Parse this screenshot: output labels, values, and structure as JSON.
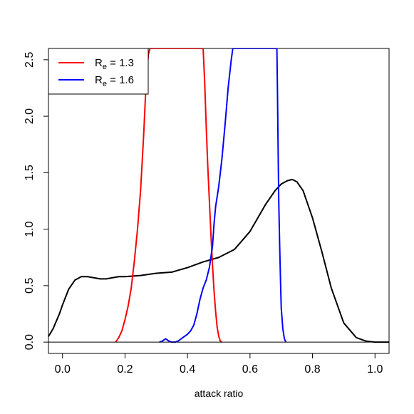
{
  "chart_data": {
    "type": "line",
    "xlabel": "attack ratio",
    "ylabel": "",
    "xlim": [
      -0.045,
      1.045
    ],
    "ylim": [
      -0.1,
      2.6
    ],
    "xticks": [
      0.0,
      0.2,
      0.4,
      0.6,
      0.8,
      1.0
    ],
    "xtick_labels": [
      "0.0",
      "0.2",
      "0.4",
      "0.6",
      "0.8",
      "1.0"
    ],
    "yticks": [
      0.0,
      0.5,
      1.0,
      1.5,
      2.0,
      2.5
    ],
    "ytick_labels": [
      "0.0",
      "0.5",
      "1.0",
      "1.5",
      "2.0",
      "2.5"
    ],
    "hline": 0,
    "grid": false,
    "legend": {
      "position": "top-left",
      "entries": [
        {
          "base": "R",
          "sub": "e",
          "rest": " = 1.3",
          "color": "#ff0000"
        },
        {
          "base": "R",
          "sub": "e",
          "rest": " = 1.6",
          "color": "#0000ff"
        }
      ]
    },
    "series": [
      {
        "color": "#000000",
        "x": [
          -0.045,
          -0.03,
          -0.01,
          0.0,
          0.02,
          0.04,
          0.06,
          0.08,
          0.1,
          0.12,
          0.14,
          0.16,
          0.18,
          0.2,
          0.25,
          0.3,
          0.35,
          0.4,
          0.45,
          0.5,
          0.55,
          0.6,
          0.65,
          0.68,
          0.7,
          0.72,
          0.735,
          0.75,
          0.77,
          0.8,
          0.83,
          0.86,
          0.9,
          0.94,
          0.97,
          1.0,
          1.045
        ],
        "y": [
          0.05,
          0.12,
          0.25,
          0.33,
          0.47,
          0.55,
          0.58,
          0.58,
          0.57,
          0.56,
          0.56,
          0.57,
          0.58,
          0.58,
          0.59,
          0.61,
          0.62,
          0.66,
          0.71,
          0.75,
          0.82,
          0.98,
          1.22,
          1.34,
          1.4,
          1.43,
          1.44,
          1.42,
          1.34,
          1.1,
          0.8,
          0.48,
          0.17,
          0.04,
          0.01,
          0.0,
          0.0
        ]
      },
      {
        "color": "#ff0000",
        "x": [
          0.17,
          0.18,
          0.19,
          0.2,
          0.21,
          0.22,
          0.23,
          0.24,
          0.25,
          0.26,
          0.265,
          0.27,
          0.275,
          0.28,
          0.45,
          0.455,
          0.46,
          0.465,
          0.47,
          0.475,
          0.48,
          0.485,
          0.49,
          0.495,
          0.5,
          0.505,
          0.51
        ],
        "y": [
          0.0,
          0.04,
          0.1,
          0.2,
          0.32,
          0.48,
          0.72,
          1.0,
          1.35,
          1.85,
          2.15,
          2.4,
          2.55,
          2.6,
          2.6,
          2.3,
          1.9,
          1.55,
          1.25,
          0.95,
          0.68,
          0.45,
          0.27,
          0.13,
          0.05,
          0.01,
          0.0
        ]
      },
      {
        "color": "#0000ff",
        "x": [
          0.31,
          0.32,
          0.33,
          0.34,
          0.35,
          0.36,
          0.37,
          0.38,
          0.39,
          0.4,
          0.41,
          0.42,
          0.43,
          0.44,
          0.45,
          0.46,
          0.47,
          0.48,
          0.485,
          0.49,
          0.5,
          0.51,
          0.52,
          0.53,
          0.54,
          0.545,
          0.686,
          0.688,
          0.69,
          0.692,
          0.695,
          0.698,
          0.7,
          0.705,
          0.71,
          0.715
        ],
        "y": [
          0.0,
          0.01,
          0.03,
          0.01,
          0.0,
          0.0,
          0.01,
          0.03,
          0.05,
          0.07,
          0.1,
          0.15,
          0.25,
          0.38,
          0.48,
          0.55,
          0.66,
          0.85,
          1.05,
          1.2,
          1.38,
          1.62,
          1.92,
          2.25,
          2.5,
          2.6,
          2.6,
          2.2,
          1.7,
          1.25,
          0.85,
          0.5,
          0.3,
          0.12,
          0.03,
          0.0
        ]
      }
    ]
  }
}
